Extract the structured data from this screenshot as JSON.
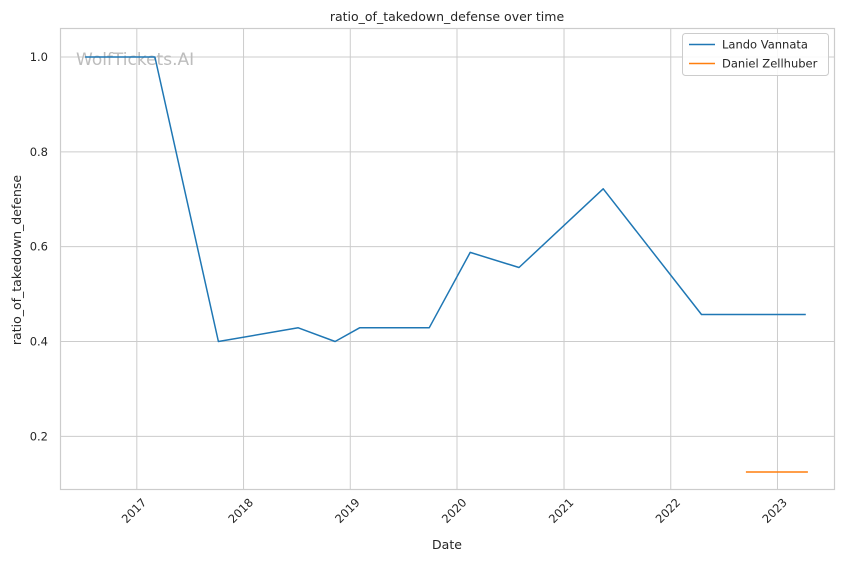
{
  "chart_data": {
    "type": "line",
    "title": "ratio_of_takedown_defense over time",
    "xlabel": "Date",
    "ylabel": "ratio_of_takedown_defense",
    "watermark": "WolfTickets.AI",
    "grid": true,
    "legend_position": "top-right",
    "x_ticks": [
      "2017",
      "2018",
      "2019",
      "2020",
      "2021",
      "2022",
      "2023"
    ],
    "y_ticks": [
      "0.2",
      "0.4",
      "0.6",
      "0.8",
      "1.0"
    ],
    "xlim": [
      "2016-04-15",
      "2023-07-15"
    ],
    "ylim": [
      0.088,
      1.06
    ],
    "series": [
      {
        "name": "Lando Vannata",
        "color": "#1f77b4",
        "points": [
          {
            "x": "2016-07-08",
            "y": 1.0
          },
          {
            "x": "2017-03-04",
            "y": 1.0
          },
          {
            "x": "2017-10-07",
            "y": 0.4
          },
          {
            "x": "2018-07-07",
            "y": 0.429
          },
          {
            "x": "2018-11-10",
            "y": 0.4
          },
          {
            "x": "2019-02-02",
            "y": 0.429
          },
          {
            "x": "2019-09-28",
            "y": 0.429
          },
          {
            "x": "2020-02-15",
            "y": 0.588
          },
          {
            "x": "2020-07-31",
            "y": 0.556
          },
          {
            "x": "2021-05-15",
            "y": 0.722
          },
          {
            "x": "2022-04-16",
            "y": 0.457
          },
          {
            "x": "2023-04-08",
            "y": 0.457
          }
        ]
      },
      {
        "name": "Daniel Zellhuber",
        "color": "#ff7f0e",
        "points": [
          {
            "x": "2022-09-15",
            "y": 0.125
          },
          {
            "x": "2023-04-15",
            "y": 0.125
          }
        ]
      }
    ]
  }
}
